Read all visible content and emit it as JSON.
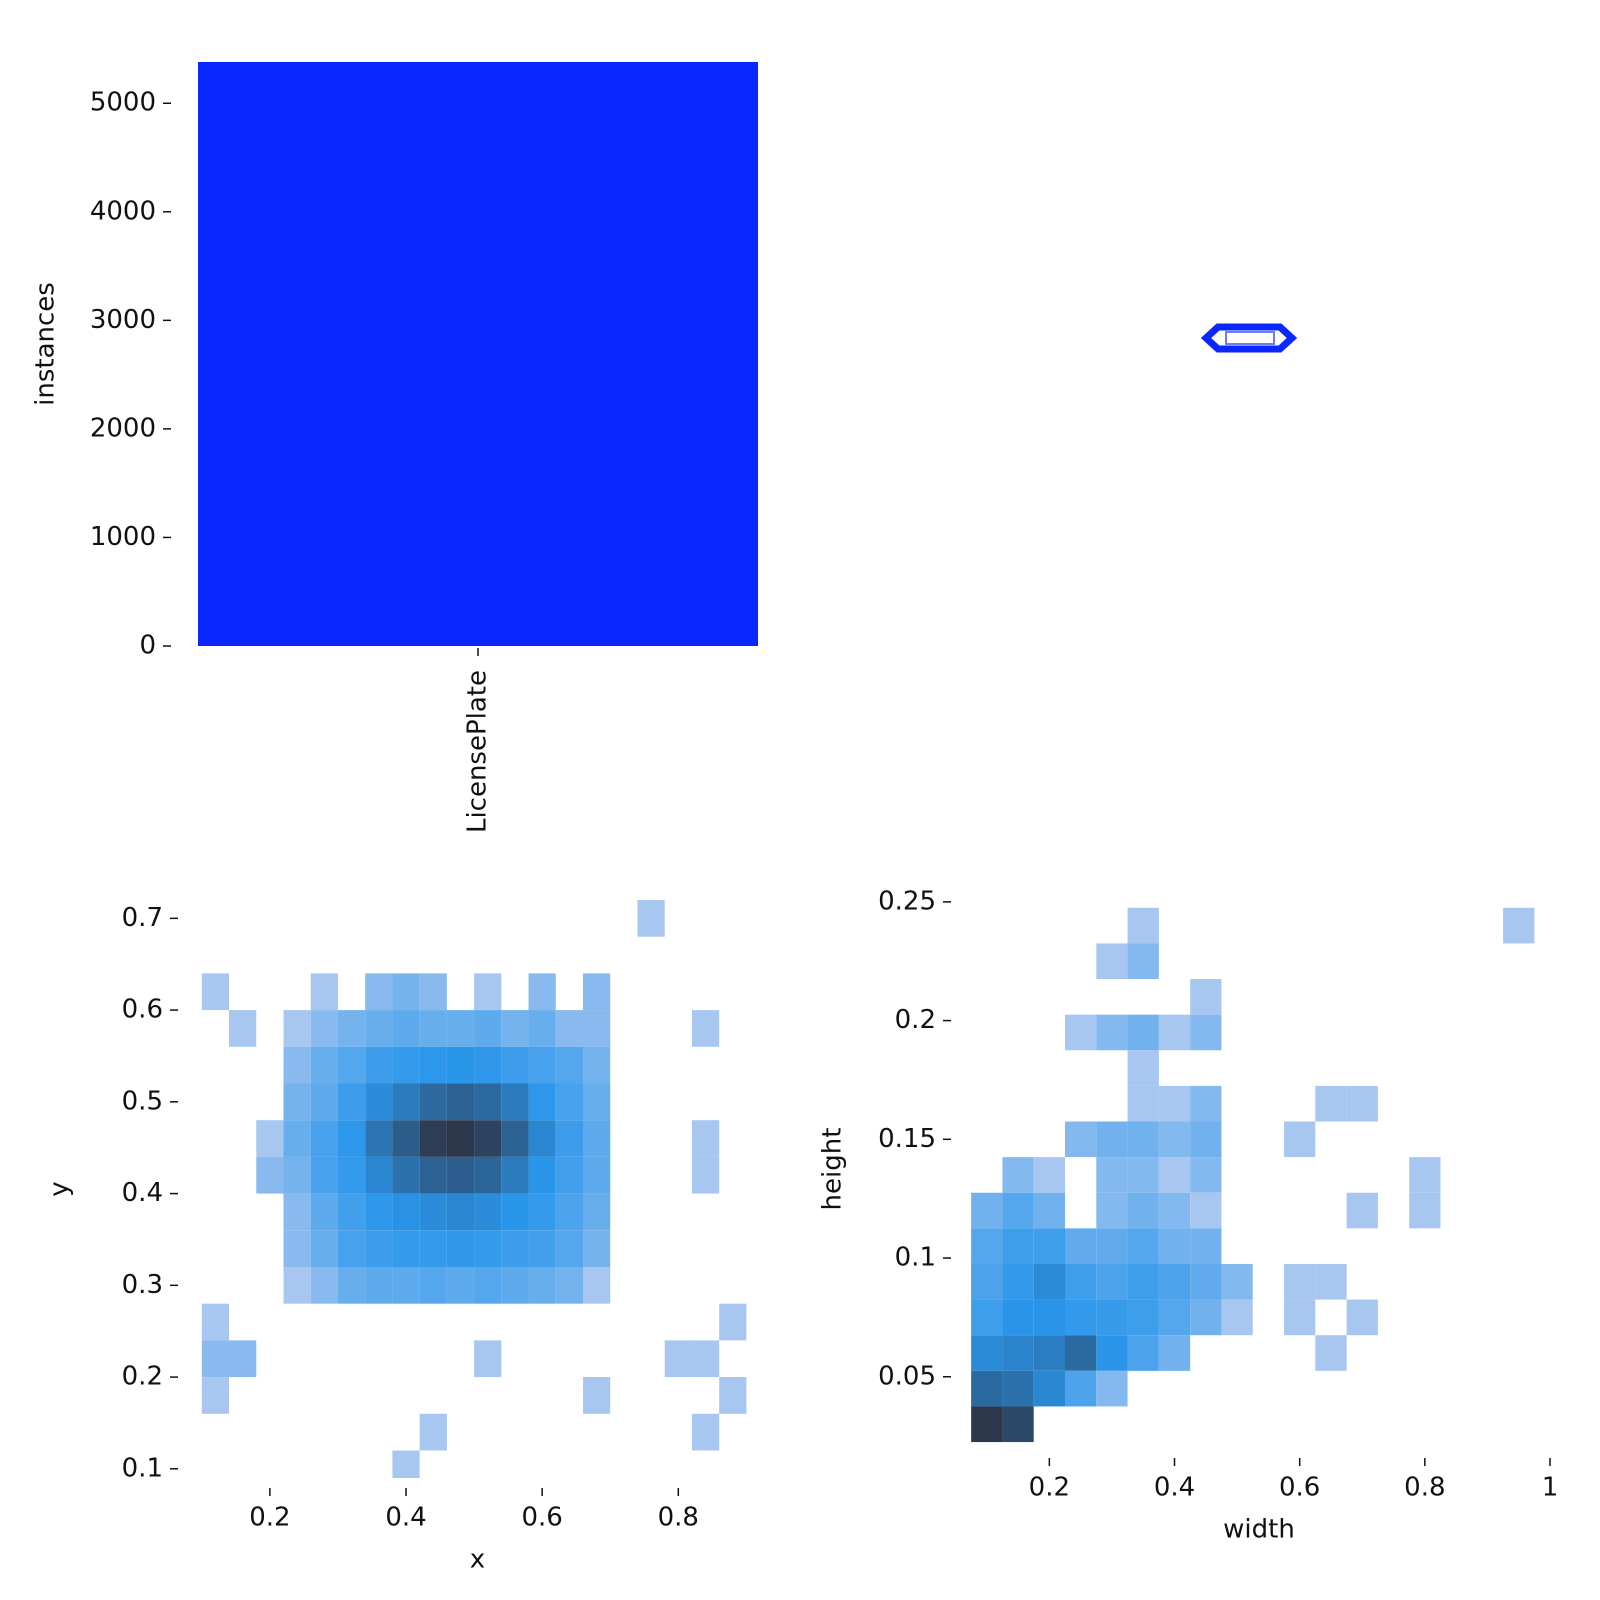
{
  "chart_data": [
    {
      "type": "bar",
      "categories": [
        "LicensePlate"
      ],
      "values": [
        5380
      ],
      "color": "#0b27ff",
      "ylabel": "instances",
      "ylim": [
        0,
        5380
      ],
      "yticks": [
        0,
        1000,
        2000,
        3000,
        4000,
        5000
      ]
    },
    {
      "type": "hist2d",
      "xlabel": "x",
      "ylabel": "y",
      "xlim": [
        0.09,
        0.92
      ],
      "ylim": [
        0.09,
        0.72
      ],
      "xticks": [
        0.2,
        0.4,
        0.6,
        0.8
      ],
      "yticks": [
        0.1,
        0.2,
        0.3,
        0.4,
        0.5,
        0.6,
        0.7
      ],
      "x": [
        0.12,
        0.16,
        0.2,
        0.24,
        0.28,
        0.32,
        0.36,
        0.4,
        0.44,
        0.48,
        0.52,
        0.56,
        0.6,
        0.64,
        0.68,
        0.72,
        0.76,
        0.8,
        0.84,
        0.88
      ],
      "y": [
        0.7,
        0.66,
        0.62,
        0.58,
        0.54,
        0.5,
        0.46,
        0.42,
        0.38,
        0.34,
        0.3,
        0.26,
        0.22,
        0.18,
        0.14,
        0.1
      ],
      "values": [
        [
          null,
          null,
          null,
          null,
          null,
          null,
          null,
          null,
          null,
          null,
          null,
          null,
          null,
          null,
          null,
          null,
          1,
          null,
          null,
          null
        ],
        [
          null,
          null,
          null,
          null,
          null,
          null,
          null,
          null,
          null,
          null,
          null,
          null,
          null,
          null,
          null,
          null,
          null,
          null,
          null,
          null
        ],
        [
          1,
          null,
          null,
          null,
          1,
          null,
          2,
          3,
          2,
          null,
          1,
          null,
          2,
          null,
          2,
          null,
          null,
          null,
          null,
          null
        ],
        [
          null,
          1,
          null,
          1,
          2,
          3,
          4,
          5,
          4,
          4,
          5,
          3,
          4,
          2,
          2,
          null,
          null,
          null,
          1,
          null
        ],
        [
          null,
          null,
          null,
          2,
          4,
          6,
          10,
          12,
          14,
          15,
          13,
          10,
          8,
          6,
          3,
          null,
          null,
          null,
          null,
          null
        ],
        [
          null,
          null,
          null,
          3,
          5,
          10,
          18,
          25,
          35,
          40,
          35,
          25,
          14,
          8,
          4,
          null,
          null,
          null,
          null,
          null
        ],
        [
          null,
          null,
          1,
          4,
          8,
          14,
          28,
          45,
          80,
          90,
          70,
          40,
          20,
          10,
          5,
          null,
          null,
          null,
          1,
          null
        ],
        [
          null,
          null,
          2,
          3,
          8,
          12,
          20,
          30,
          40,
          42,
          38,
          25,
          15,
          9,
          5,
          null,
          null,
          null,
          1,
          null
        ],
        [
          null,
          null,
          null,
          2,
          5,
          9,
          14,
          16,
          18,
          20,
          18,
          15,
          12,
          7,
          4,
          null,
          null,
          null,
          null,
          null
        ],
        [
          null,
          null,
          null,
          2,
          4,
          8,
          10,
          12,
          12,
          13,
          12,
          10,
          9,
          6,
          3,
          null,
          null,
          null,
          null,
          null
        ],
        [
          null,
          null,
          null,
          1,
          2,
          4,
          5,
          5,
          6,
          5,
          6,
          5,
          4,
          3,
          1,
          null,
          null,
          null,
          null,
          null
        ],
        [
          1,
          null,
          null,
          null,
          null,
          null,
          null,
          null,
          null,
          null,
          null,
          null,
          null,
          null,
          null,
          null,
          null,
          null,
          null,
          1
        ],
        [
          2,
          2,
          null,
          null,
          null,
          null,
          null,
          null,
          null,
          null,
          1,
          null,
          null,
          null,
          null,
          null,
          null,
          1,
          1,
          null
        ],
        [
          1,
          null,
          null,
          null,
          null,
          null,
          null,
          null,
          null,
          null,
          null,
          null,
          null,
          null,
          1,
          null,
          null,
          null,
          null,
          1
        ],
        [
          null,
          null,
          null,
          null,
          null,
          null,
          null,
          null,
          1,
          null,
          null,
          null,
          null,
          null,
          null,
          null,
          null,
          null,
          1,
          null
        ],
        [
          null,
          null,
          null,
          null,
          null,
          null,
          null,
          1,
          null,
          null,
          null,
          null,
          null,
          null,
          null,
          null,
          null,
          null,
          null,
          null
        ]
      ]
    },
    {
      "type": "hist2d",
      "xlabel": "width",
      "ylabel": "height",
      "xlim": [
        0.07,
        1.0
      ],
      "ylim": [
        0.02,
        0.255
      ],
      "xticks": [
        0.2,
        0.4,
        0.6,
        0.8,
        1.0
      ],
      "yticks": [
        0.05,
        0.1,
        0.15,
        0.2,
        0.25
      ],
      "x": [
        0.1,
        0.15,
        0.2,
        0.25,
        0.3,
        0.35,
        0.4,
        0.45,
        0.5,
        0.55,
        0.6,
        0.65,
        0.7,
        0.75,
        0.8,
        0.85,
        0.9,
        0.95
      ],
      "y": [
        0.24,
        0.225,
        0.21,
        0.195,
        0.18,
        0.165,
        0.15,
        0.135,
        0.12,
        0.105,
        0.09,
        0.075,
        0.06,
        0.045,
        0.03
      ],
      "values": [
        [
          null,
          null,
          null,
          null,
          null,
          1,
          null,
          null,
          null,
          null,
          null,
          null,
          null,
          null,
          null,
          null,
          null,
          1
        ],
        [
          null,
          null,
          null,
          null,
          1,
          2,
          null,
          null,
          null,
          null,
          null,
          null,
          null,
          null,
          null,
          null,
          null,
          null
        ],
        [
          null,
          null,
          null,
          null,
          null,
          null,
          null,
          1,
          null,
          null,
          null,
          null,
          null,
          null,
          null,
          null,
          null,
          null
        ],
        [
          null,
          null,
          null,
          1,
          2,
          3,
          1,
          2,
          null,
          null,
          null,
          null,
          null,
          null,
          null,
          null,
          null,
          null
        ],
        [
          null,
          null,
          null,
          null,
          null,
          1,
          null,
          null,
          null,
          null,
          null,
          null,
          null,
          null,
          null,
          null,
          null,
          null
        ],
        [
          null,
          null,
          null,
          null,
          null,
          1,
          1,
          2,
          null,
          null,
          null,
          1,
          1,
          null,
          null,
          null,
          null,
          null
        ],
        [
          null,
          null,
          null,
          2,
          3,
          3,
          2,
          3,
          null,
          null,
          1,
          null,
          null,
          null,
          null,
          null,
          null,
          null
        ],
        [
          null,
          2,
          1,
          null,
          2,
          2,
          1,
          2,
          null,
          null,
          null,
          null,
          null,
          null,
          1,
          null,
          null,
          null
        ],
        [
          3,
          5,
          3,
          null,
          2,
          3,
          2,
          1,
          null,
          null,
          null,
          null,
          1,
          null,
          1,
          null,
          null,
          null
        ],
        [
          5,
          8,
          8,
          4,
          4,
          5,
          3,
          3,
          null,
          null,
          null,
          null,
          null,
          null,
          null,
          null,
          null,
          null
        ],
        [
          6,
          10,
          14,
          8,
          6,
          8,
          6,
          4,
          2,
          null,
          1,
          1,
          null,
          null,
          null,
          null,
          null,
          null
        ],
        [
          8,
          12,
          12,
          10,
          9,
          8,
          5,
          3,
          1,
          null,
          1,
          null,
          1,
          null,
          null,
          null,
          null,
          null
        ],
        [
          14,
          16,
          18,
          25,
          12,
          6,
          3,
          null,
          null,
          null,
          null,
          1,
          null,
          null,
          null,
          null,
          null,
          null
        ],
        [
          25,
          22,
          15,
          6,
          2,
          null,
          null,
          null,
          null,
          null,
          null,
          null,
          null,
          null,
          null,
          null,
          null,
          null
        ],
        [
          60,
          45,
          null,
          null,
          null,
          null,
          null,
          null,
          null,
          null,
          null,
          null,
          null,
          null,
          null,
          null,
          null,
          null
        ]
      ]
    }
  ]
}
